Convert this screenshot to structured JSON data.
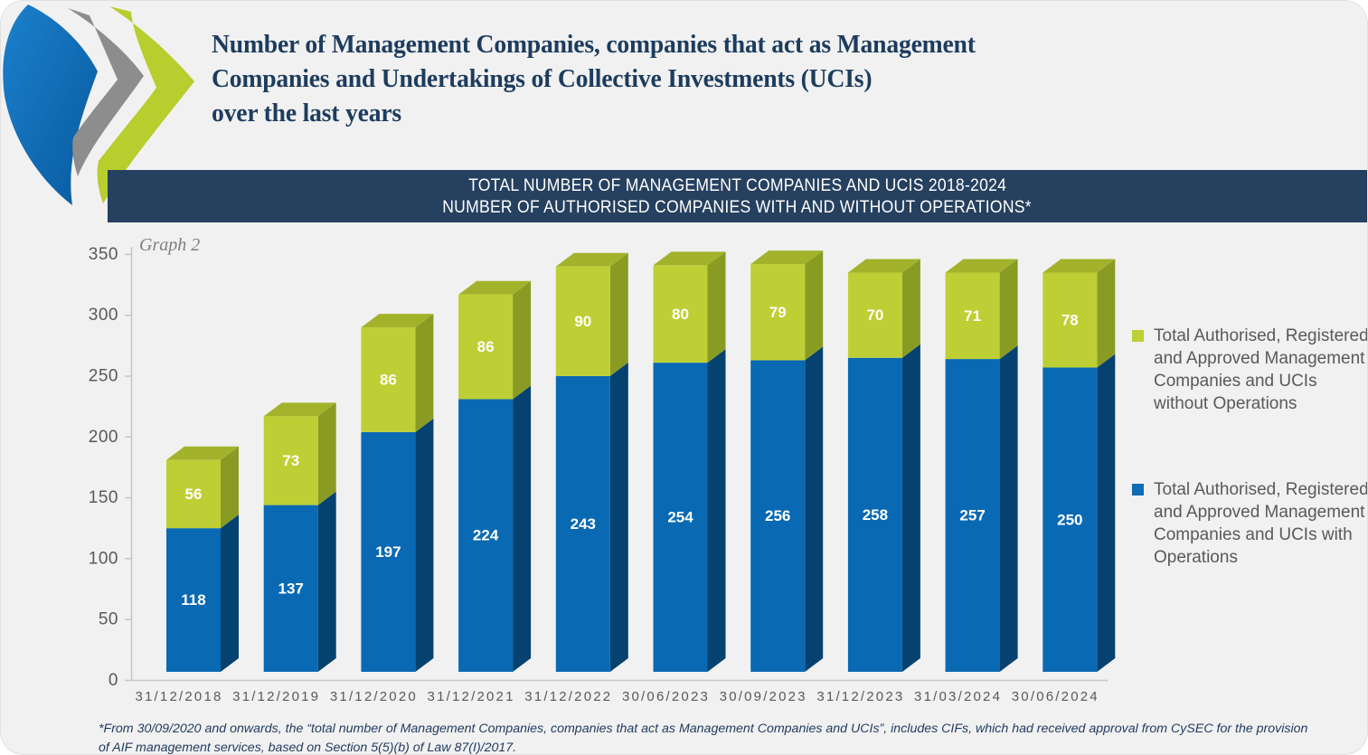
{
  "header": {
    "title_lines": [
      "Number of Management Companies, companies that act as Management",
      "Companies and Undertakings of Collective Investments (UCIs)",
      "over the last years"
    ]
  },
  "banner": {
    "line1": "TOTAL NUMBER OF MANAGEMENT COMPANIES AND UCIS 2018-2024",
    "line2": "NUMBER OF AUTHORISED COMPANIES WITH AND WITHOUT OPERATIONS*"
  },
  "chart": {
    "graph_label": "Graph 2"
  },
  "legend": {
    "items": [
      {
        "label": "Total Authorised, Registered and Approved Management Companies and UCIs without Operations",
        "label_lines": [
          "Total Authorised, Registered",
          "and Approved Management",
          "Companies and UCIs",
          "without Operations"
        ],
        "color": "#bdcf35"
      },
      {
        "label": "Total Authorised, Registered and Approved Management Companies and UCIs with Operations",
        "label_lines": [
          "Total Authorised, Registered",
          "and Approved Management",
          "Companies and UCIs with",
          "Operations"
        ],
        "color": "#0f6cb3"
      }
    ]
  },
  "footnote": {
    "lines": [
      "*From 30/09/2020 and onwards, the “total number of Management Companies, companies that act as Management Companies and UCIs”, includes CIFs, which had received approval from CySEC for the provision",
      "of AIF management services, based on Section 5(5)(b) of Law 87(I)/2017."
    ]
  },
  "chart_data": {
    "type": "bar",
    "stacked": true,
    "title": "TOTAL NUMBER OF MANAGEMENT COMPANIES AND UCIS 2018-2024 — NUMBER OF AUTHORISED COMPANIES WITH AND WITHOUT OPERATIONS*",
    "graph_label": "Graph 2",
    "categories": [
      "31/12/2018",
      "31/12/2019",
      "31/12/2020",
      "31/12/2021",
      "31/12/2022",
      "30/06/2023",
      "30/09/2023",
      "31/12/2023",
      "31/03/2024",
      "30/06/2024"
    ],
    "series": [
      {
        "name": "Total Authorised, Registered and Approved Management Companies and UCIs with Operations",
        "color": "#0969b3",
        "side_color": "#064270",
        "values": [
          118,
          137,
          197,
          224,
          243,
          254,
          256,
          258,
          257,
          250
        ]
      },
      {
        "name": "Total Authorised, Registered and Approved Management Companies and UCIs without Operations",
        "color": "#bdcf35",
        "side_color": "#8a9b23",
        "top_color": "#a2b32b",
        "values": [
          56,
          73,
          86,
          86,
          90,
          80,
          79,
          70,
          71,
          78
        ]
      }
    ],
    "totals": [
      174,
      210,
      283,
      310,
      333,
      334,
      335,
      328,
      328,
      328
    ],
    "ylim": [
      0,
      350
    ],
    "yticks": [
      0,
      50,
      100,
      150,
      200,
      250,
      300,
      350
    ],
    "grid": false,
    "legend_position": "right",
    "value_label_color": "#ffffff"
  },
  "colors": {
    "card_bg": "#f1f1f1",
    "banner_bg": "#26405f",
    "title_text": "#1d3c5e",
    "axis_text": "#595959",
    "legend_text": "#595959",
    "footnote_text": "#1f3a5f"
  }
}
